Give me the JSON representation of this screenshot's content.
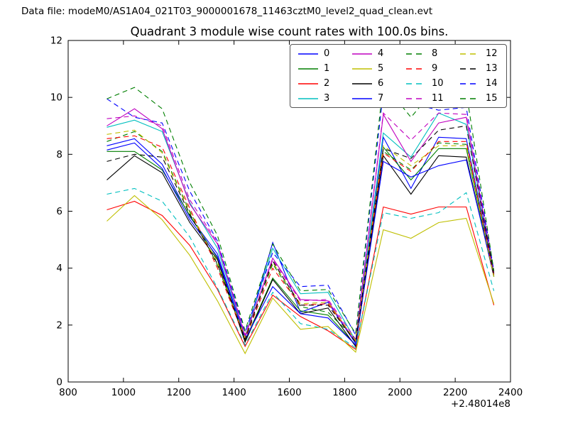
{
  "header": {
    "data_file": "Data file: modeM0/AS1A04_021T03_9000001678_11463cztM0_level2_quad_clean.evt"
  },
  "chart_data": {
    "type": "line",
    "title": "Quadrant 3 module wise count rates with 100.0s bins.",
    "xlabel": "",
    "ylabel": "",
    "x_offset_text": "+2.48014e8",
    "xlim": [
      800,
      2400
    ],
    "ylim": [
      0,
      12
    ],
    "xticks": [
      800,
      1000,
      1200,
      1400,
      1600,
      1800,
      2000,
      2200,
      2400
    ],
    "yticks": [
      0,
      2,
      4,
      6,
      8,
      10,
      12
    ],
    "grid": false,
    "legend_position": "upper right",
    "legend_columns": 4,
    "x": [
      940,
      1040,
      1140,
      1240,
      1340,
      1440,
      1540,
      1640,
      1740,
      1840,
      1940,
      2040,
      2140,
      2240,
      2340
    ],
    "series": [
      {
        "name": "0",
        "color": "#0000ff",
        "style": "solid",
        "values": [
          8.3,
          8.55,
          7.65,
          5.8,
          4.5,
          1.55,
          4.9,
          2.45,
          2.8,
          1.35,
          8.6,
          6.8,
          8.6,
          8.55,
          3.8
        ]
      },
      {
        "name": "1",
        "color": "#007f00",
        "style": "solid",
        "values": [
          8.1,
          8.1,
          7.45,
          5.85,
          4.35,
          1.45,
          3.65,
          2.5,
          2.35,
          1.3,
          8.25,
          7.1,
          8.2,
          8.2,
          3.7
        ]
      },
      {
        "name": "2",
        "color": "#ff0000",
        "style": "solid",
        "values": [
          6.05,
          6.35,
          5.85,
          4.8,
          3.25,
          1.25,
          3.05,
          2.3,
          1.8,
          1.15,
          6.15,
          5.9,
          6.15,
          6.15,
          2.7
        ]
      },
      {
        "name": "3",
        "color": "#00bfbf",
        "style": "solid",
        "values": [
          8.95,
          9.2,
          8.8,
          6.3,
          4.7,
          1.6,
          4.7,
          3.1,
          3.15,
          1.45,
          8.75,
          7.9,
          9.45,
          9.05,
          3.8
        ]
      },
      {
        "name": "4",
        "color": "#bf00bf",
        "style": "solid",
        "values": [
          9.0,
          9.6,
          8.9,
          6.25,
          4.85,
          1.6,
          4.35,
          2.9,
          2.85,
          1.4,
          9.4,
          7.75,
          9.1,
          9.3,
          3.8
        ]
      },
      {
        "name": "5",
        "color": "#bfbf00",
        "style": "solid",
        "values": [
          5.65,
          6.55,
          5.7,
          4.45,
          2.85,
          1.0,
          2.95,
          1.85,
          1.95,
          1.05,
          5.35,
          5.05,
          5.6,
          5.75,
          2.75
        ]
      },
      {
        "name": "6",
        "color": "#000000",
        "style": "solid",
        "values": [
          7.1,
          7.95,
          7.35,
          5.6,
          4.3,
          1.4,
          3.6,
          2.4,
          2.6,
          1.25,
          7.95,
          6.6,
          7.95,
          7.9,
          3.7
        ]
      },
      {
        "name": "7",
        "color": "#0000ff",
        "style": "solid",
        "values": [
          8.15,
          8.4,
          7.5,
          5.7,
          4.4,
          1.5,
          3.35,
          2.4,
          2.25,
          1.3,
          7.75,
          7.2,
          7.6,
          7.8,
          3.75
        ]
      },
      {
        "name": "8",
        "color": "#007f00",
        "style": "dashed",
        "values": [
          8.45,
          8.8,
          8.1,
          6.0,
          4.1,
          1.55,
          4.15,
          2.65,
          2.45,
          1.5,
          8.1,
          7.45,
          8.4,
          8.35,
          3.75
        ]
      },
      {
        "name": "9",
        "color": "#ff0000",
        "style": "dashed",
        "values": [
          8.55,
          8.65,
          8.25,
          6.1,
          4.0,
          1.5,
          4.0,
          2.7,
          2.75,
          1.45,
          8.05,
          7.4,
          8.45,
          8.45,
          3.75
        ]
      },
      {
        "name": "10",
        "color": "#00bfbf",
        "style": "dashed",
        "values": [
          6.6,
          6.8,
          6.35,
          5.1,
          3.3,
          1.3,
          3.15,
          2.05,
          1.85,
          1.2,
          5.95,
          5.75,
          5.95,
          6.65,
          3.2
        ]
      },
      {
        "name": "11",
        "color": "#bf00bf",
        "style": "dashed",
        "values": [
          9.25,
          9.35,
          9.0,
          6.4,
          4.9,
          1.65,
          4.3,
          2.85,
          2.9,
          1.5,
          9.45,
          8.5,
          9.45,
          9.4,
          3.85
        ]
      },
      {
        "name": "12",
        "color": "#bfbf00",
        "style": "dashed",
        "values": [
          8.7,
          8.85,
          8.05,
          5.95,
          4.2,
          1.55,
          4.2,
          2.75,
          2.8,
          1.45,
          8.3,
          7.6,
          8.3,
          8.3,
          3.7
        ]
      },
      {
        "name": "13",
        "color": "#000000",
        "style": "dashed",
        "values": [
          7.75,
          8.0,
          7.9,
          5.9,
          4.15,
          1.5,
          4.25,
          2.7,
          2.7,
          1.4,
          8.2,
          7.85,
          8.85,
          9.0,
          3.8
        ]
      },
      {
        "name": "14",
        "color": "#0000ff",
        "style": "dashed",
        "values": [
          9.95,
          9.3,
          9.1,
          6.7,
          4.95,
          1.75,
          4.55,
          3.35,
          3.4,
          1.65,
          10.2,
          9.8,
          9.55,
          9.65,
          3.9
        ]
      },
      {
        "name": "15",
        "color": "#007f00",
        "style": "dashed",
        "values": [
          9.95,
          10.35,
          9.6,
          7.0,
          5.15,
          1.8,
          4.85,
          3.2,
          3.25,
          1.7,
          10.5,
          9.3,
          10.45,
          10.2,
          3.9
        ]
      }
    ]
  }
}
